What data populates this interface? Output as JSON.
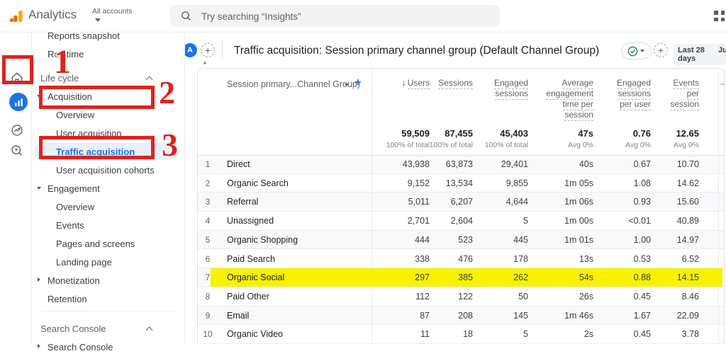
{
  "topbar": {
    "app_name": "Analytics",
    "account_switcher": "All accounts",
    "search_placeholder": "Try searching “Insights”"
  },
  "rail": {
    "icons": [
      "home-icon",
      "reports-icon",
      "advertising-icon",
      "explore-icon"
    ],
    "active_icon": "reports-icon"
  },
  "sidebar": {
    "items": [
      {
        "label": "Reports snapshot",
        "kind": "item",
        "level": 0
      },
      {
        "label": "Realtime",
        "kind": "item",
        "level": 0
      },
      {
        "label": "Life cycle",
        "kind": "section",
        "chevron": "up"
      },
      {
        "label": "Acquisition",
        "kind": "item",
        "level": 0,
        "caret": "down"
      },
      {
        "label": "Overview",
        "kind": "item",
        "level": 1
      },
      {
        "label": "User acquisition",
        "kind": "item",
        "level": 1
      },
      {
        "label": "Traffic acquisition",
        "kind": "item",
        "level": 1,
        "active": true
      },
      {
        "label": "User acquisition cohorts",
        "kind": "item",
        "level": 1
      },
      {
        "label": "Engagement",
        "kind": "item",
        "level": 0,
        "caret": "down"
      },
      {
        "label": "Overview",
        "kind": "item",
        "level": 1
      },
      {
        "label": "Events",
        "kind": "item",
        "level": 1
      },
      {
        "label": "Pages and screens",
        "kind": "item",
        "level": 1
      },
      {
        "label": "Landing page",
        "kind": "item",
        "level": 1
      },
      {
        "label": "Monetization",
        "kind": "item",
        "level": 0,
        "caret": "right"
      },
      {
        "label": "Retention",
        "kind": "item",
        "level": 0
      },
      {
        "kind": "divider"
      },
      {
        "label": "Search Console",
        "kind": "section",
        "chevron": "up"
      },
      {
        "label": "Search Console",
        "kind": "item",
        "level": 0,
        "caret": "right"
      }
    ]
  },
  "annotations": {
    "steps": [
      "1",
      "2",
      "3"
    ],
    "color": "#e2211c",
    "highlight_color": "#f8f200"
  },
  "report_header": {
    "avatar_letter": "A",
    "title": "Traffic acquisition: Session primary channel group (Default Channel Group)",
    "date_range": "Last 28 days",
    "date_range_more": "Ju"
  },
  "table": {
    "dimension_header": "Session primary...Channel Group)",
    "columns": [
      {
        "label": "Users",
        "lines": [
          "Users"
        ],
        "sorted": true
      },
      {
        "label": "Sessions",
        "lines": [
          "Sessions"
        ]
      },
      {
        "label": "Engaged sessions",
        "lines": [
          "Engaged",
          "sessions"
        ]
      },
      {
        "label": "Average engagement time per session",
        "lines": [
          "Average",
          "engagement",
          "time per",
          "session"
        ]
      },
      {
        "label": "Engaged sessions per user",
        "lines": [
          "Engaged",
          "sessions",
          "per user"
        ]
      },
      {
        "label": "Events per session",
        "lines": [
          "Events",
          "per",
          "session"
        ]
      }
    ],
    "totals": {
      "values": [
        "59,509",
        "87,455",
        "45,403",
        "47s",
        "0.76",
        "12.65"
      ],
      "subs": [
        "100% of total",
        "100% of total",
        "100% of total",
        "Avg 0%",
        "Avg 0%",
        "Avg 0%"
      ]
    },
    "rows": [
      {
        "n": "1",
        "channel": "Direct",
        "values": [
          "43,938",
          "63,873",
          "29,401",
          "40s",
          "0.67",
          "10.70"
        ]
      },
      {
        "n": "2",
        "channel": "Organic Search",
        "values": [
          "9,152",
          "13,534",
          "9,855",
          "1m 05s",
          "1.08",
          "14.62"
        ]
      },
      {
        "n": "3",
        "channel": "Referral",
        "values": [
          "5,011",
          "6,207",
          "4,644",
          "1m 06s",
          "0.93",
          "15.60"
        ]
      },
      {
        "n": "4",
        "channel": "Unassigned",
        "values": [
          "2,701",
          "2,604",
          "5",
          "1m 00s",
          "<0.01",
          "40.89"
        ]
      },
      {
        "n": "5",
        "channel": "Organic Shopping",
        "values": [
          "444",
          "523",
          "445",
          "1m 01s",
          "1.00",
          "14.97"
        ]
      },
      {
        "n": "6",
        "channel": "Paid Search",
        "values": [
          "338",
          "476",
          "178",
          "13s",
          "0.53",
          "6.52"
        ]
      },
      {
        "n": "7",
        "channel": "Organic Social",
        "values": [
          "297",
          "385",
          "262",
          "54s",
          "0.88",
          "14.15"
        ],
        "highlighted": true
      },
      {
        "n": "8",
        "channel": "Paid Other",
        "values": [
          "112",
          "122",
          "50",
          "26s",
          "0.45",
          "8.46"
        ]
      },
      {
        "n": "9",
        "channel": "Email",
        "values": [
          "87",
          "208",
          "145",
          "1m 46s",
          "1.67",
          "22.09"
        ]
      },
      {
        "n": "10",
        "channel": "Organic Video",
        "values": [
          "11",
          "18",
          "5",
          "2s",
          "0.45",
          "3.78"
        ]
      }
    ]
  },
  "colors": {
    "accent_blue": "#1a73e8",
    "active_pill": "#e8f0fe",
    "annotation_red": "#e2211c",
    "row_highlight_yellow": "#f8f200",
    "check_green": "#1e8e3e"
  }
}
